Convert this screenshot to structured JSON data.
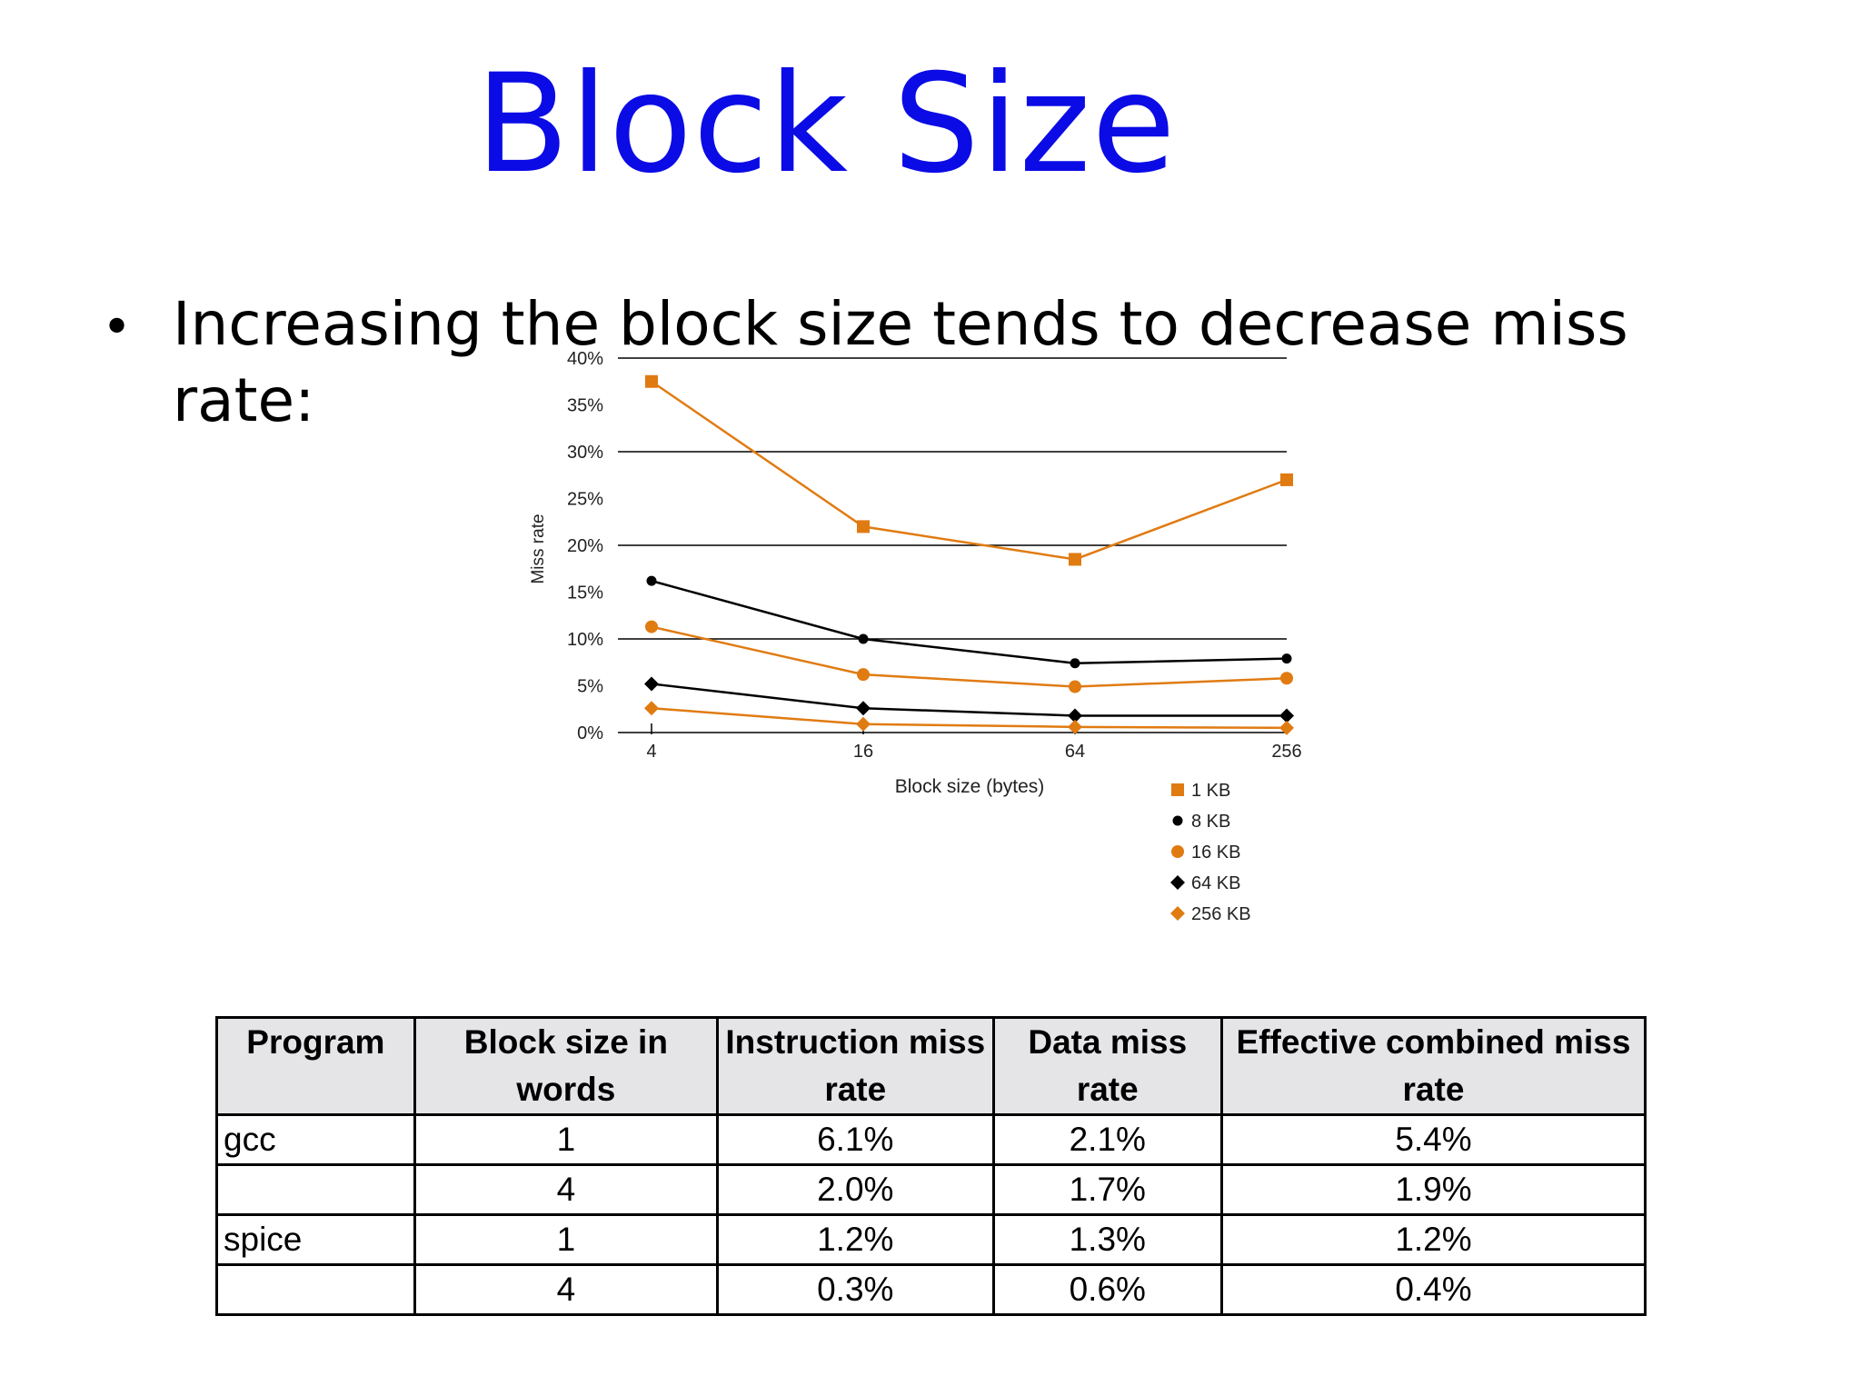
{
  "slide": {
    "title": "Block Size",
    "bullet": "•",
    "bullet_line1": "Increasing the block size tends to decrease miss",
    "bullet_line2": "rate:"
  },
  "chart_data": {
    "type": "line",
    "xlabel": "Block size (bytes)",
    "ylabel": "Miss rate",
    "categories": [
      "4",
      "16",
      "64",
      "256"
    ],
    "yticks": [
      "0%",
      "5%",
      "10%",
      "15%",
      "20%",
      "25%",
      "30%",
      "35%",
      "40%"
    ],
    "ylim": [
      0,
      40
    ],
    "grid": "horizontal lines at 10%, 20%, 30%, 40%",
    "legend_position": "bottom-right",
    "series": [
      {
        "name": "1 KB",
        "values": [
          37.5,
          22.0,
          18.5,
          27.0
        ],
        "marker": "square",
        "color": "#e07b12"
      },
      {
        "name": "8 KB",
        "values": [
          16.2,
          10.0,
          7.4,
          7.9
        ],
        "marker": "circle",
        "color": "#000000"
      },
      {
        "name": "16 KB",
        "values": [
          11.3,
          6.2,
          4.9,
          5.8
        ],
        "marker": "circle",
        "color": "#e07b12"
      },
      {
        "name": "64 KB",
        "values": [
          5.2,
          2.6,
          1.8,
          1.8
        ],
        "marker": "diamond",
        "color": "#000000"
      },
      {
        "name": "256 KB",
        "values": [
          2.6,
          0.9,
          0.6,
          0.5
        ],
        "marker": "diamond",
        "color": "#e07b12"
      }
    ]
  },
  "table": {
    "headers": [
      "Program",
      "Block size in words",
      "Instruction miss rate",
      "Data miss rate",
      "Effective combined miss rate"
    ],
    "rows": [
      [
        "gcc",
        "1",
        "6.1%",
        "2.1%",
        "5.4%"
      ],
      [
        "",
        "4",
        "2.0%",
        "1.7%",
        "1.9%"
      ],
      [
        "spice",
        "1",
        "1.2%",
        "1.3%",
        "1.2%"
      ],
      [
        "",
        "4",
        "0.3%",
        "0.6%",
        "0.4%"
      ]
    ]
  }
}
